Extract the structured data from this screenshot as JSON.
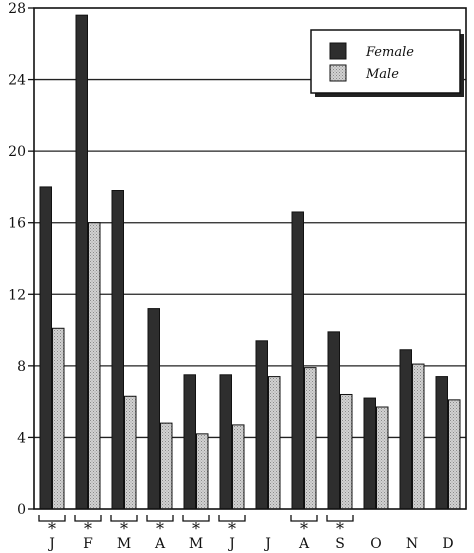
{
  "chart_data": {
    "type": "bar",
    "categories": [
      "J",
      "F",
      "M",
      "A",
      "M",
      "J",
      "J",
      "A",
      "S",
      "O",
      "N",
      "D"
    ],
    "series": [
      {
        "name": "Female",
        "values": [
          18.0,
          27.6,
          17.8,
          11.2,
          7.5,
          7.5,
          9.4,
          16.6,
          9.9,
          6.2,
          8.9,
          7.4
        ]
      },
      {
        "name": "Male",
        "values": [
          10.1,
          16.0,
          6.3,
          4.8,
          4.2,
          4.7,
          7.4,
          7.9,
          6.4,
          5.7,
          8.1,
          6.1
        ]
      }
    ],
    "significant_markers": [
      "*",
      "*",
      "*",
      "*",
      "*",
      "*",
      "",
      "*",
      "*",
      "",
      "",
      ""
    ],
    "yticks": [
      0,
      4,
      8,
      12,
      16,
      20,
      24,
      28
    ],
    "ylim": [
      0,
      28
    ],
    "grid": true,
    "legend_position": "top-right",
    "colors": {
      "female": "#2e2e2e",
      "male": "#c4c4c4"
    }
  }
}
